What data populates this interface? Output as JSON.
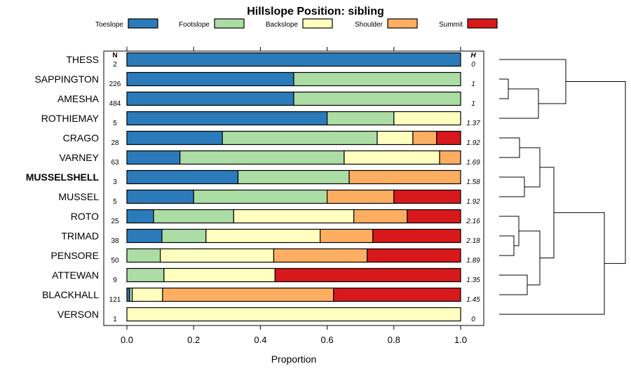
{
  "chart_data": {
    "type": "bar",
    "orientation": "horizontal-stacked",
    "title": "Hillslope Position: sibling",
    "xlabel": "Proportion",
    "xlim": [
      0,
      1
    ],
    "xticks": [
      "0.0",
      "0.2",
      "0.4",
      "0.6",
      "0.8",
      "1.0"
    ],
    "n_header": "N",
    "h_header": "H",
    "legend": [
      {
        "name": "Toeslope",
        "color": "#2b7bba"
      },
      {
        "name": "Footslope",
        "color": "#abdda4"
      },
      {
        "name": "Backslope",
        "color": "#ffffbf"
      },
      {
        "name": "Shoulder",
        "color": "#fdae61"
      },
      {
        "name": "Summit",
        "color": "#d7191c"
      }
    ],
    "rows": [
      {
        "name": "THESS",
        "bold": false,
        "n": "2",
        "h": "0",
        "values": [
          1.0,
          0,
          0,
          0,
          0
        ]
      },
      {
        "name": "SAPPINGTON",
        "bold": false,
        "n": "226",
        "h": "1",
        "values": [
          0.5,
          0.5,
          0,
          0,
          0
        ]
      },
      {
        "name": "AMESHA",
        "bold": false,
        "n": "484",
        "h": "1",
        "values": [
          0.5,
          0.5,
          0,
          0,
          0
        ]
      },
      {
        "name": "ROTHIEMAY",
        "bold": false,
        "n": "5",
        "h": "1.37",
        "values": [
          0.6,
          0.2,
          0.2,
          0,
          0
        ]
      },
      {
        "name": "CRAGO",
        "bold": false,
        "n": "28",
        "h": "1.92",
        "values": [
          0.286,
          0.464,
          0.107,
          0.071,
          0.072
        ]
      },
      {
        "name": "VARNEY",
        "bold": false,
        "n": "63",
        "h": "1.69",
        "values": [
          0.159,
          0.492,
          0.286,
          0.063,
          0
        ]
      },
      {
        "name": "MUSSELSHELL",
        "bold": true,
        "n": "3",
        "h": "1.58",
        "values": [
          0.333,
          0.333,
          0,
          0.334,
          0
        ]
      },
      {
        "name": "MUSSEL",
        "bold": false,
        "n": "5",
        "h": "1.92",
        "values": [
          0.2,
          0.4,
          0,
          0.2,
          0.2
        ]
      },
      {
        "name": "ROTO",
        "bold": false,
        "n": "25",
        "h": "2.16",
        "values": [
          0.08,
          0.24,
          0.36,
          0.16,
          0.16
        ]
      },
      {
        "name": "TRIMAD",
        "bold": false,
        "n": "38",
        "h": "2.18",
        "values": [
          0.105,
          0.132,
          0.342,
          0.158,
          0.263
        ]
      },
      {
        "name": "PENSORE",
        "bold": false,
        "n": "50",
        "h": "1.89",
        "values": [
          0,
          0.1,
          0.34,
          0.28,
          0.28
        ]
      },
      {
        "name": "ATTEWAN",
        "bold": false,
        "n": "9",
        "h": "1.35",
        "values": [
          0,
          0.111,
          0.333,
          0,
          0.556
        ]
      },
      {
        "name": "BLACKHALL",
        "bold": false,
        "n": "121",
        "h": "1.45",
        "values": [
          0.008,
          0.008,
          0.091,
          0.512,
          0.381
        ]
      },
      {
        "name": "VERSON",
        "bold": false,
        "n": "1",
        "h": "0",
        "values": [
          0,
          0,
          1.0,
          0,
          0
        ]
      }
    ]
  }
}
